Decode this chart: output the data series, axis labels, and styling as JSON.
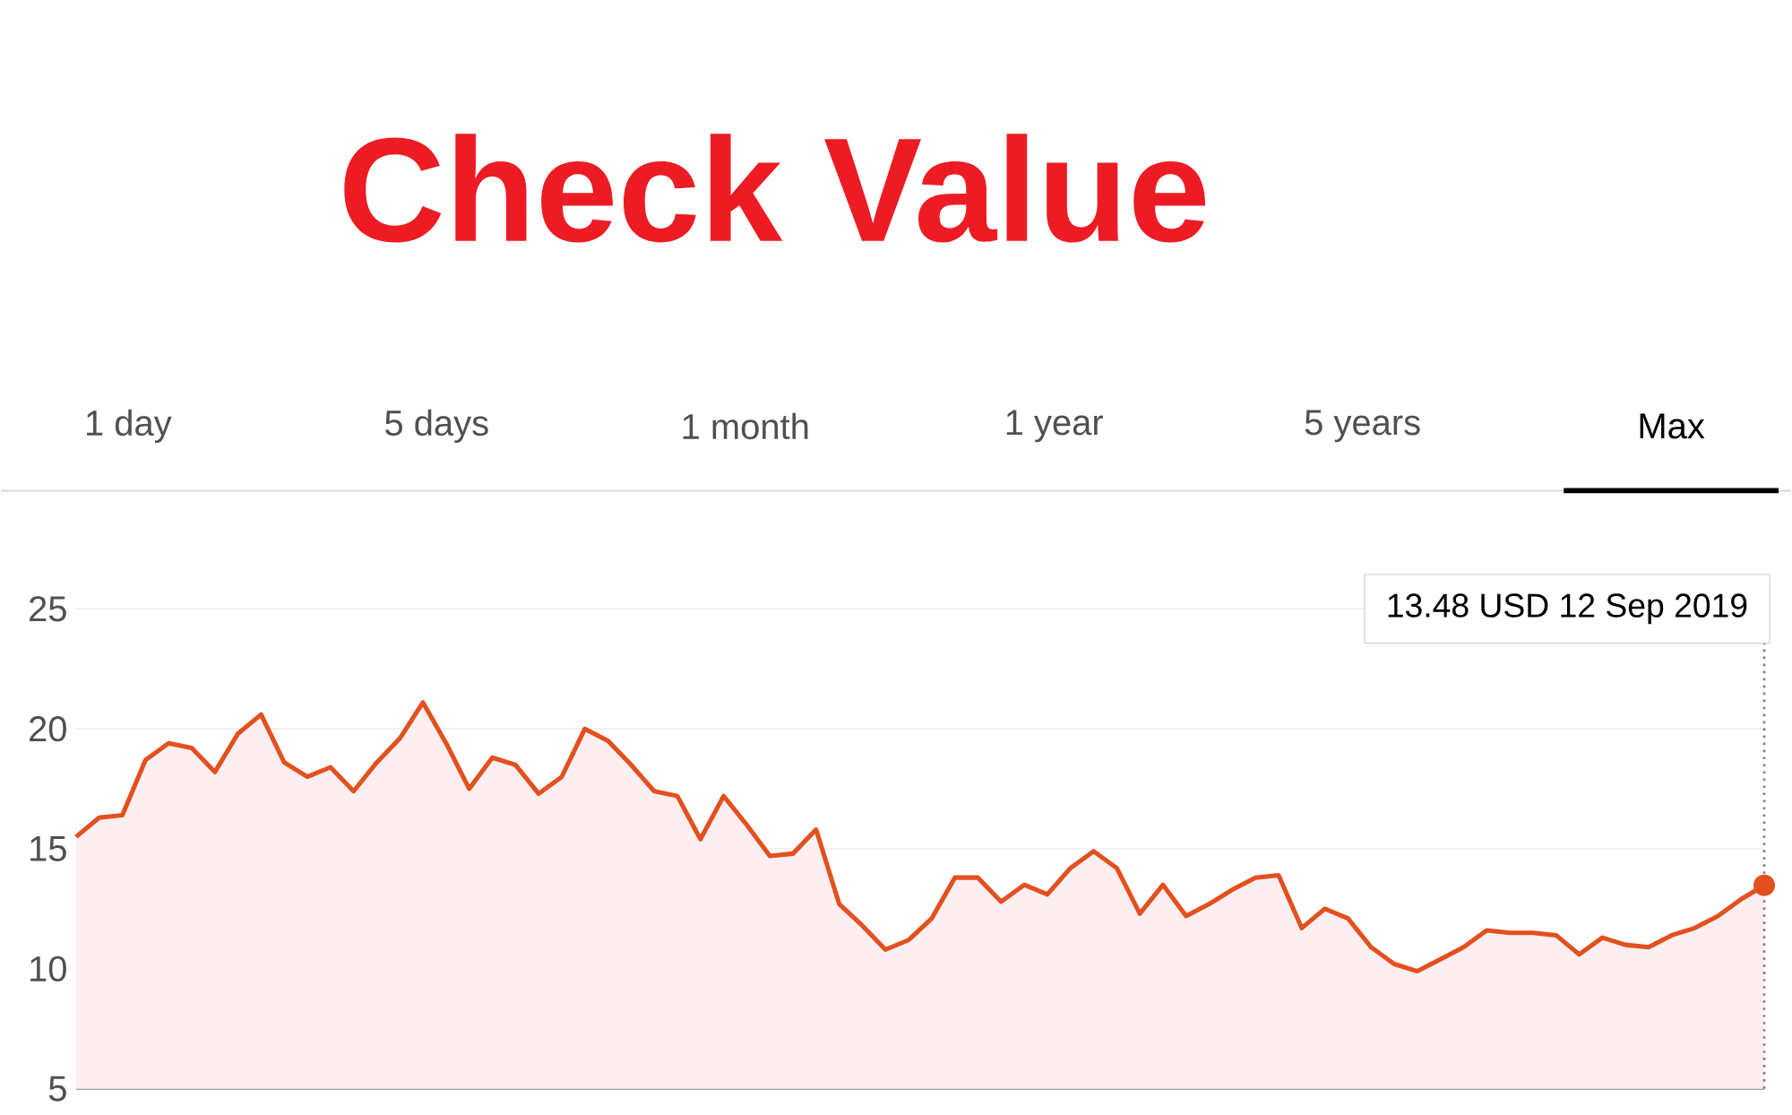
{
  "chart_data": {
    "type": "area",
    "title": "Check Value",
    "categories": [
      null,
      null,
      null,
      null,
      null,
      null,
      null,
      null,
      null,
      null,
      null,
      null,
      null,
      null,
      null,
      null,
      null,
      null,
      null,
      null,
      null,
      null,
      null,
      null,
      null,
      null,
      null,
      null,
      null,
      null,
      null,
      null,
      null,
      null,
      null,
      null,
      null,
      null,
      null,
      null,
      null,
      null,
      null,
      null,
      null,
      null,
      null,
      null,
      null,
      null,
      null,
      null,
      null,
      null,
      null,
      null,
      null,
      null,
      null,
      null,
      null,
      null,
      null,
      null,
      null,
      null,
      null,
      null,
      null,
      null,
      null,
      null,
      null,
      null
    ],
    "values": [
      15.5,
      16.3,
      16.4,
      18.7,
      19.4,
      19.2,
      18.2,
      19.8,
      20.6,
      18.6,
      18.0,
      18.4,
      17.4,
      18.6,
      19.6,
      21.1,
      19.4,
      17.5,
      18.8,
      18.5,
      17.3,
      18.0,
      20.0,
      19.5,
      18.5,
      17.4,
      17.2,
      15.4,
      17.2,
      16.0,
      14.7,
      14.8,
      15.8,
      12.7,
      11.8,
      10.8,
      11.2,
      12.1,
      13.8,
      13.8,
      12.8,
      13.5,
      13.1,
      14.2,
      14.9,
      14.2,
      12.3,
      13.5,
      12.2,
      12.7,
      13.3,
      13.8,
      13.9,
      11.7,
      12.5,
      12.1,
      10.9,
      10.2,
      9.9,
      10.4,
      10.9,
      11.6,
      11.5,
      11.5,
      11.4,
      10.6,
      11.3,
      11.0,
      10.9,
      11.4,
      11.7,
      12.2,
      12.9,
      13.48
    ],
    "color": "#e3501e",
    "ylim": [
      5,
      25
    ],
    "yticks": [
      5,
      10,
      15,
      20,
      25
    ],
    "grid": "y",
    "annotations": [
      "1 day",
      "5 days",
      "1 month",
      "1 year",
      "5 years",
      "Max",
      "13.48 USD  12 Sep 2019"
    ]
  }
}
